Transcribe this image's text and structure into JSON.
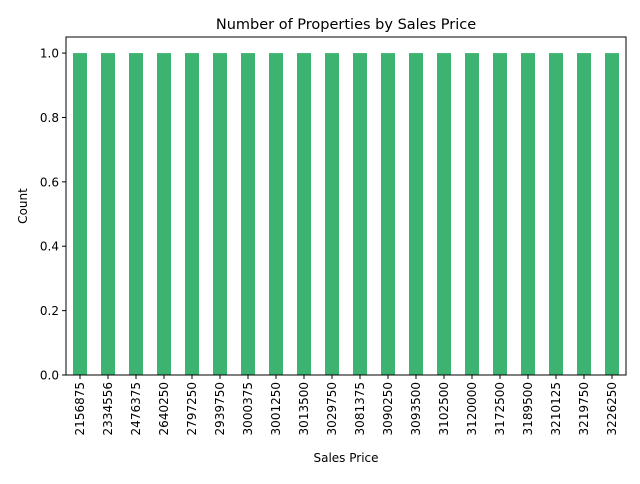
{
  "chart_data": {
    "type": "bar",
    "title": "Number of Properties by Sales Price",
    "xlabel": "Sales Price",
    "ylabel": "Count",
    "categories": [
      "2156875",
      "2334556",
      "2476375",
      "2640250",
      "2797250",
      "2939750",
      "3000375",
      "3001250",
      "3013500",
      "3029750",
      "3081375",
      "3090250",
      "3093500",
      "3102500",
      "3120000",
      "3172500",
      "3189500",
      "3210125",
      "3219750",
      "3226250"
    ],
    "values": [
      1,
      1,
      1,
      1,
      1,
      1,
      1,
      1,
      1,
      1,
      1,
      1,
      1,
      1,
      1,
      1,
      1,
      1,
      1,
      1
    ],
    "ylim": [
      0,
      1.05
    ],
    "yticks": [
      "0.0",
      "0.2",
      "0.4",
      "0.6",
      "0.8",
      "1.0"
    ],
    "ytick_values": [
      0,
      0.2,
      0.4,
      0.6,
      0.8,
      1.0
    ],
    "grid": false,
    "legend": "none",
    "bar_color": "#3cb371"
  }
}
